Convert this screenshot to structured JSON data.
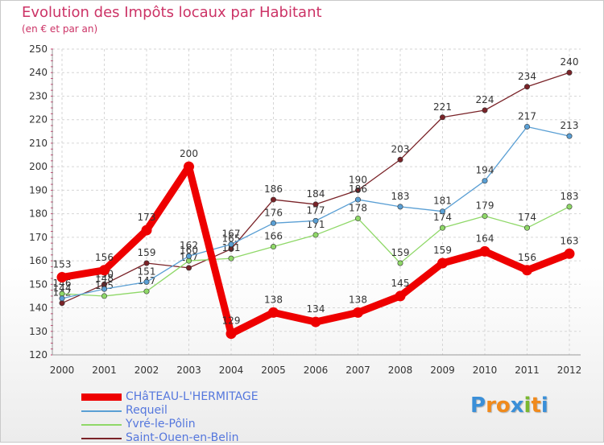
{
  "header": {
    "title": "Evolution des Impôts locaux par Habitant",
    "subtitle": "(en € et par an)"
  },
  "logo": {
    "letters": [
      "P",
      "r",
      "o",
      "x",
      "i",
      "t",
      "i"
    ],
    "colors": [
      "#3a8fd8",
      "#f08a1c",
      "#f08a1c",
      "#3a8fd8",
      "#7ab830",
      "#f08a1c",
      "#3a8fd8"
    ]
  },
  "chart_data": {
    "type": "line",
    "title": "Evolution des Impôts locaux par Habitant",
    "subtitle": "(en € et par an)",
    "xlabel": "",
    "ylabel": "",
    "x": [
      "2000",
      "2001",
      "2002",
      "2003",
      "2004",
      "2005",
      "2006",
      "2007",
      "2008",
      "2009",
      "2010",
      "2011",
      "2012"
    ],
    "ylim": [
      120,
      250
    ],
    "yticks": [
      120,
      130,
      140,
      150,
      160,
      170,
      180,
      190,
      200,
      210,
      220,
      230,
      240,
      250
    ],
    "grid": true,
    "legend_position": "bottom-left",
    "series": [
      {
        "name": "Saint-Ouen-en-Belin",
        "color": "#7a2328",
        "values": [
          142,
          150,
          159,
          157,
          165,
          186,
          184,
          190,
          203,
          221,
          224,
          234,
          240
        ],
        "labels": [
          "142",
          "150",
          "159",
          "157",
          "165",
          "186",
          "184",
          "190",
          "203",
          "221",
          "224",
          "234",
          "240"
        ]
      },
      {
        "name": "Yvré-le-Pôlin",
        "color": "#8fd868",
        "values": [
          146,
          145,
          147,
          160,
          161,
          166,
          171,
          178,
          159,
          174,
          179,
          174,
          183
        ],
        "labels": [
          "146",
          "145",
          "147",
          "160",
          "161",
          "166",
          "171",
          "178",
          "159",
          "174",
          "179",
          "174",
          "183"
        ]
      },
      {
        "name": "Requeil",
        "color": "#5a9fd4",
        "values": [
          144,
          148,
          151,
          162,
          167,
          176,
          177,
          186,
          183,
          181,
          194,
          217,
          213
        ],
        "labels": [
          "144",
          "148",
          "151",
          "162",
          "167",
          "176",
          "177",
          "186",
          "183",
          "181",
          "194",
          "217",
          "213"
        ]
      },
      {
        "name": "CHâTEAU-L'HERMITAGE",
        "color": "#ee0000",
        "values": [
          153,
          156,
          173,
          200,
          129,
          138,
          134,
          138,
          145,
          159,
          164,
          156,
          163
        ],
        "labels": [
          "153",
          "156",
          "173",
          "200",
          "129",
          "138",
          "134",
          "138",
          "145",
          "159",
          "164",
          "156",
          "163"
        ]
      }
    ],
    "legend": [
      "CHâTEAU-L'HERMITAGE",
      "Requeil",
      "Yvré-le-Pôlin",
      "Saint-Ouen-en-Belin"
    ]
  }
}
